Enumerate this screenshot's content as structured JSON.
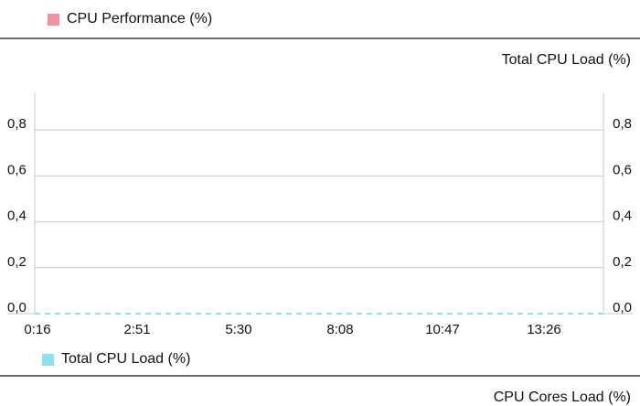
{
  "top_legend": {
    "label": "CPU Performance (%)",
    "color": "#f4919f"
  },
  "panel": {
    "title": "Total CPU Load (%)"
  },
  "bottom_legend": {
    "label": "Total CPU Load (%)",
    "color": "#8ee1f0"
  },
  "next_panel": {
    "title": "CPU Cores Load (%)"
  },
  "chart_data": {
    "type": "line",
    "title": "Total CPU Load (%)",
    "x_tick_labels": [
      "0:16",
      "2:51",
      "5:30",
      "8:08",
      "10:47",
      "13:26"
    ],
    "y_tick_labels": [
      "0,0",
      "0,2",
      "0,4",
      "0,6",
      "0,8"
    ],
    "y_ticks": [
      0,
      0.2,
      0.4,
      0.6,
      0.8
    ],
    "ylim": [
      0,
      0.96
    ],
    "grid": true,
    "legend_placement": "bottom-left",
    "series": [
      {
        "name": "Total CPU Load (%)",
        "color": "#8ee1f0",
        "style": "dashed",
        "values": [
          0,
          0,
          0,
          0,
          0,
          0
        ]
      }
    ]
  }
}
